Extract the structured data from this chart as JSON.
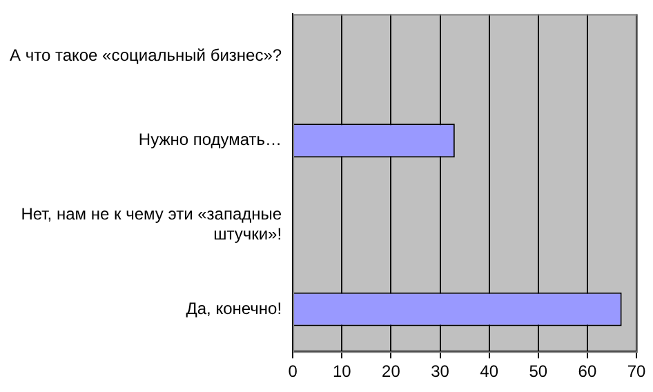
{
  "chart_data": {
    "type": "bar",
    "orientation": "horizontal",
    "categories": [
      "А что такое «социальный бизнес»?",
      "Нужно подумать…",
      "Нет, нам не к чему эти «западные штучки»!",
      "Да, конечно!"
    ],
    "values": [
      0,
      33,
      0,
      67
    ],
    "color": "#9999ff",
    "xlim": [
      0,
      70
    ],
    "xticks": [
      0,
      10,
      20,
      30,
      40,
      50,
      60,
      70
    ],
    "grid": "x",
    "legend": false
  }
}
